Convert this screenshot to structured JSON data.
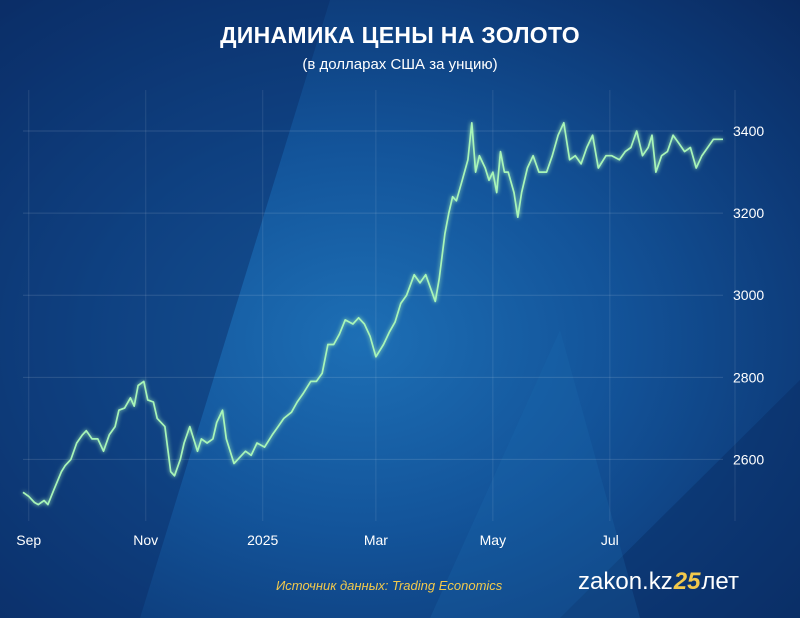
{
  "title": "ДИНАМИКА ЦЕНЫ НА ЗОЛОТО",
  "subtitle": "(в долларах США за унцию)",
  "source": "Источник данных: Trading Economics",
  "brand": {
    "name": "zakon.kz",
    "number": "25",
    "suffix": "лет"
  },
  "colors": {
    "line": "#a8f5b8",
    "accent": "#f2c94c",
    "background": "#13549a"
  },
  "chart_data": {
    "type": "line",
    "title": "ДИНАМИКА ЦЕНЫ НА ЗОЛОТО",
    "ylabel": "в долларах США за унцию",
    "ylim": [
      2450,
      3500
    ],
    "yticks": [
      2600,
      2800,
      3000,
      3200,
      3400
    ],
    "xlim": [
      "2024-08-29",
      "2025-08-29"
    ],
    "xticks": [
      {
        "label": "Sep",
        "date": "2024-09-01"
      },
      {
        "label": "Nov",
        "date": "2024-11-01"
      },
      {
        "label": "2025",
        "date": "2025-01-01"
      },
      {
        "label": "Mar",
        "date": "2025-03-01"
      },
      {
        "label": "May",
        "date": "2025-05-01"
      },
      {
        "label": "Jul",
        "date": "2025-07-01"
      }
    ],
    "grid": true,
    "series": [
      {
        "x": [
          "2024-08-29",
          "2024-09-01",
          "2024-09-04",
          "2024-09-06",
          "2024-09-09",
          "2024-09-11",
          "2024-09-14",
          "2024-09-18",
          "2024-09-20",
          "2024-09-23",
          "2024-09-26",
          "2024-09-29",
          "2024-10-01",
          "2024-10-04",
          "2024-10-07",
          "2024-10-10",
          "2024-10-13",
          "2024-10-16",
          "2024-10-18",
          "2024-10-21",
          "2024-10-24",
          "2024-10-26",
          "2024-10-28",
          "2024-10-31",
          "2024-11-02",
          "2024-11-05",
          "2024-11-07",
          "2024-11-11",
          "2024-11-14",
          "2024-11-16",
          "2024-11-19",
          "2024-11-21",
          "2024-11-24",
          "2024-11-28",
          "2024-11-30",
          "2024-12-03",
          "2024-12-06",
          "2024-12-08",
          "2024-12-11",
          "2024-12-13",
          "2024-12-17",
          "2024-12-19",
          "2024-12-23",
          "2024-12-26",
          "2024-12-29",
          "2025-01-02",
          "2025-01-06",
          "2025-01-09",
          "2025-01-12",
          "2025-01-16",
          "2025-01-19",
          "2025-01-22",
          "2025-01-26",
          "2025-01-29",
          "2025-02-01",
          "2025-02-04",
          "2025-02-07",
          "2025-02-10",
          "2025-02-13",
          "2025-02-17",
          "2025-02-20",
          "2025-02-23",
          "2025-02-26",
          "2025-03-01",
          "2025-03-05",
          "2025-03-08",
          "2025-03-11",
          "2025-03-14",
          "2025-03-17",
          "2025-03-21",
          "2025-03-24",
          "2025-03-27",
          "2025-04-01",
          "2025-04-03",
          "2025-04-06",
          "2025-04-08",
          "2025-04-10",
          "2025-04-12",
          "2025-04-15",
          "2025-04-18",
          "2025-04-20",
          "2025-04-22",
          "2025-04-24",
          "2025-04-27",
          "2025-04-29",
          "2025-05-01",
          "2025-05-03",
          "2025-05-05",
          "2025-05-07",
          "2025-05-09",
          "2025-05-12",
          "2025-05-14",
          "2025-05-16",
          "2025-05-19",
          "2025-05-22",
          "2025-05-25",
          "2025-05-29",
          "2025-06-01",
          "2025-06-04",
          "2025-06-07",
          "2025-06-10",
          "2025-06-13",
          "2025-06-16",
          "2025-06-19",
          "2025-06-22",
          "2025-06-25",
          "2025-06-29",
          "2025-07-02",
          "2025-07-06",
          "2025-07-09",
          "2025-07-12",
          "2025-07-15",
          "2025-07-18",
          "2025-07-21",
          "2025-07-23",
          "2025-07-25",
          "2025-07-28",
          "2025-07-31",
          "2025-08-03",
          "2025-08-06",
          "2025-08-09",
          "2025-08-12",
          "2025-08-15",
          "2025-08-18",
          "2025-08-21",
          "2025-08-24",
          "2025-08-27",
          "2025-08-29"
        ],
        "y": [
          2520,
          2510,
          2495,
          2490,
          2500,
          2490,
          2525,
          2570,
          2585,
          2600,
          2640,
          2660,
          2670,
          2650,
          2650,
          2620,
          2660,
          2680,
          2720,
          2725,
          2750,
          2730,
          2780,
          2790,
          2745,
          2740,
          2700,
          2680,
          2570,
          2560,
          2600,
          2640,
          2680,
          2620,
          2650,
          2640,
          2650,
          2690,
          2720,
          2650,
          2590,
          2600,
          2620,
          2610,
          2640,
          2630,
          2660,
          2680,
          2700,
          2715,
          2740,
          2760,
          2790,
          2790,
          2810,
          2880,
          2880,
          2905,
          2940,
          2930,
          2945,
          2930,
          2900,
          2850,
          2880,
          2910,
          2935,
          2980,
          3000,
          3050,
          3030,
          3050,
          2985,
          3040,
          3150,
          3200,
          3240,
          3230,
          3280,
          3330,
          3420,
          3300,
          3340,
          3310,
          3280,
          3300,
          3250,
          3350,
          3300,
          3300,
          3250,
          3190,
          3250,
          3310,
          3340,
          3300,
          3300,
          3340,
          3390,
          3420,
          3330,
          3340,
          3320,
          3360,
          3390,
          3310,
          3340,
          3340,
          3330,
          3350,
          3360,
          3400,
          3340,
          3360,
          3390,
          3300,
          3340,
          3350,
          3390,
          3370,
          3350,
          3360,
          3310,
          3340,
          3360,
          3380,
          3380,
          3380
        ]
      }
    ]
  }
}
